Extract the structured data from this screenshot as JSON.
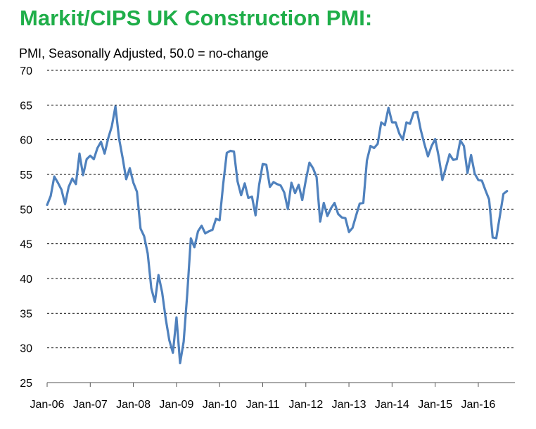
{
  "chart_data": {
    "type": "line",
    "title": "Markit/CIPS UK Construction PMI:",
    "subtitle": "PMI, Seasonally Adjusted, 50.0 = no-change",
    "xlabel": "",
    "ylabel": "",
    "ylim": [
      25,
      70
    ],
    "yticks": [
      25,
      30,
      35,
      40,
      45,
      50,
      55,
      60,
      65,
      70
    ],
    "x_tick_labels": [
      "Jan-06",
      "Jan-07",
      "Jan-08",
      "Jan-09",
      "Jan-10",
      "Jan-11",
      "Jan-12",
      "Jan-13",
      "Jan-14",
      "Jan-15",
      "Jan-16"
    ],
    "grid": "horizontal-dashed",
    "legend": "none",
    "line_color": "#4f81bd",
    "x_start": "Jan-06",
    "x_frequency": "monthly",
    "series": [
      {
        "values": [
          50.6,
          51.9,
          54.7,
          53.8,
          52.8,
          50.7,
          53.2,
          54.4,
          53.6,
          58.0,
          54.9,
          57.2,
          57.7,
          57.2,
          58.8,
          59.7,
          58.0,
          60.2,
          61.9,
          64.8,
          60.2,
          57.4,
          54.3,
          55.9,
          53.8,
          52.5,
          47.2,
          46.1,
          43.6,
          38.6,
          36.6,
          40.5,
          38.0,
          34.2,
          31.1,
          29.3,
          34.4,
          27.8,
          30.9,
          37.8,
          45.8,
          44.5,
          46.8,
          47.6,
          46.5,
          46.8,
          47.0,
          48.6,
          48.4,
          53.6,
          58.1,
          58.4,
          58.3,
          54.0,
          52.0,
          53.7,
          51.6,
          51.8,
          49.1,
          53.5,
          56.5,
          56.4,
          53.2,
          53.9,
          53.6,
          53.4,
          52.4,
          50.0,
          53.8,
          52.3,
          53.5,
          51.3,
          54.2,
          56.7,
          55.9,
          54.6,
          48.2,
          50.9,
          49.0,
          50.1,
          50.9,
          49.3,
          48.8,
          48.7,
          46.7,
          47.3,
          49.1,
          50.8,
          50.9,
          57.0,
          59.1,
          58.8,
          59.4,
          62.5,
          62.1,
          64.6,
          62.5,
          62.5,
          60.9,
          60.0,
          62.5,
          62.3,
          63.9,
          64.0,
          61.4,
          59.4,
          57.6,
          59.1,
          60.1,
          57.5,
          54.2,
          56.0,
          57.9,
          57.1,
          57.2,
          59.9,
          59.1,
          55.2,
          57.8,
          55.1,
          54.2,
          54.1,
          52.7,
          51.4,
          45.9,
          45.8,
          49.0,
          52.2,
          52.6
        ]
      }
    ]
  }
}
